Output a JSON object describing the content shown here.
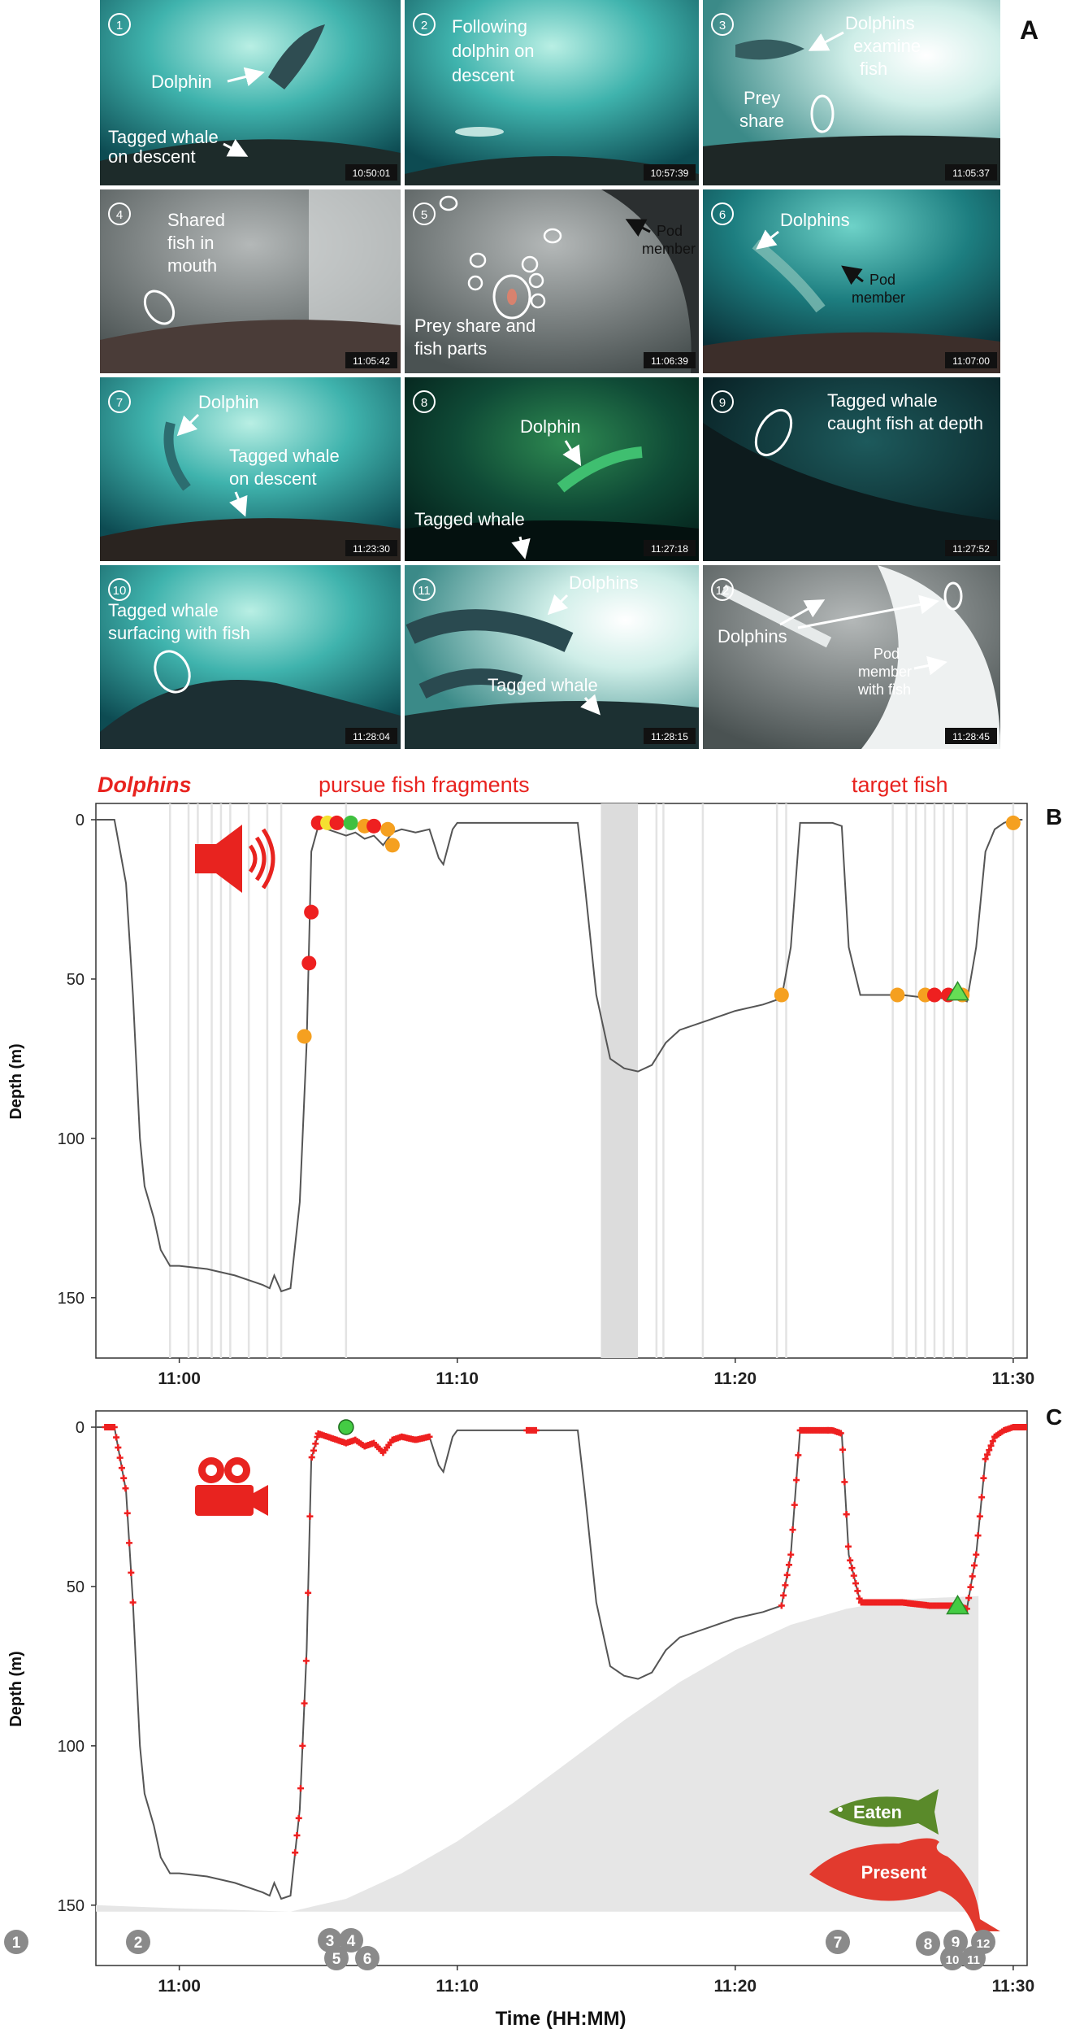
{
  "figure_title": "",
  "panel_letters": {
    "a": "A",
    "b": "B",
    "c": "C"
  },
  "photos": [
    {
      "number": "1",
      "timestamp": "10:50:01",
      "labels": [
        "Dolphin",
        "Tagged whale",
        "on descent"
      ]
    },
    {
      "number": "2",
      "timestamp": "10:57:39",
      "labels": [
        "Following",
        "dolphin on",
        "descent"
      ]
    },
    {
      "number": "3",
      "timestamp": "11:05:37",
      "labels": [
        "Dolphins",
        "examine",
        "fish",
        "Prey",
        "share"
      ]
    },
    {
      "number": "4",
      "timestamp": "11:05:42",
      "labels": [
        "Shared",
        "fish in",
        "mouth"
      ]
    },
    {
      "number": "5",
      "timestamp": "11:06:39",
      "labels": [
        "Pod",
        "member",
        "Prey share and",
        "fish parts"
      ]
    },
    {
      "number": "6",
      "timestamp": "11:07:00",
      "labels": [
        "Dolphins",
        "Pod",
        "member"
      ]
    },
    {
      "number": "7",
      "timestamp": "11:23:30",
      "labels": [
        "Dolphin",
        "Tagged whale",
        "on descent"
      ]
    },
    {
      "number": "8",
      "timestamp": "11:27:18",
      "labels": [
        "Dolphin",
        "Tagged whale"
      ]
    },
    {
      "number": "9",
      "timestamp": "11:27:52",
      "labels": [
        "Tagged whale",
        "caught fish at depth"
      ]
    },
    {
      "number": "10",
      "timestamp": "11:28:04",
      "labels": [
        "Tagged whale",
        "surfacing with fish"
      ]
    },
    {
      "number": "11",
      "timestamp": "11:28:15",
      "labels": [
        "Dolphins",
        "Tagged whale"
      ]
    },
    {
      "number": "12",
      "timestamp": "11:28:45",
      "labels": [
        "Dolphins",
        "Pod",
        "member",
        "with fish"
      ]
    }
  ],
  "chart_data": [
    {
      "type": "line",
      "panel": "B",
      "annotations": [
        "Dolphins",
        "pursue fish fragments",
        "target fish"
      ],
      "icon": "speaker-icon",
      "ylabel": "Depth (m)",
      "xlabel": "",
      "x_tick_labels": [
        "11:00",
        "11:10",
        "11:20",
        "11:30"
      ],
      "y_tick_labels": [
        "0",
        "50",
        "100",
        "150"
      ],
      "ylim": [
        0,
        160
      ],
      "xlim": [
        "10:57:00",
        "11:30:30"
      ],
      "depth_profile": {
        "x": [
          "10:57:00",
          "10:57:40",
          "10:58:05",
          "10:58:20",
          "10:58:35",
          "10:58:45",
          "10:59:05",
          "10:59:20",
          "10:59:40",
          "10:59:55",
          "11:00:00",
          "11:01:00",
          "11:02:00",
          "11:03:00",
          "11:03:15",
          "11:03:25",
          "11:03:40",
          "11:04:00",
          "11:04:20",
          "11:04:35",
          "11:04:45",
          "11:05:00",
          "11:05:20",
          "11:05:40",
          "11:06:00",
          "11:06:20",
          "11:06:40",
          "11:07:00",
          "11:07:20",
          "11:07:40",
          "11:08:00",
          "11:08:30",
          "11:09:00",
          "11:09:20",
          "11:09:30",
          "11:09:50",
          "11:10:00",
          "11:12:00",
          "11:14:00",
          "11:14:20",
          "11:14:35",
          "11:15:00",
          "11:15:30",
          "11:16:00",
          "11:16:30",
          "11:17:00",
          "11:17:30",
          "11:18:00",
          "11:19:00",
          "11:20:00",
          "11:21:00",
          "11:21:40",
          "11:22:00",
          "11:22:20",
          "11:23:00",
          "11:23:30",
          "11:23:50",
          "11:24:05",
          "11:24:30",
          "11:25:00",
          "11:26:00",
          "11:27:00",
          "11:28:00",
          "11:28:20",
          "11:28:40",
          "11:29:00",
          "11:29:20",
          "11:29:40",
          "11:30:00",
          "11:30:20"
        ],
        "y": [
          0,
          0,
          20,
          55,
          100,
          115,
          125,
          135,
          140,
          140,
          140,
          141,
          143,
          146,
          147,
          143,
          148,
          147,
          120,
          70,
          10,
          2,
          3,
          4,
          5,
          4,
          6,
          5,
          8,
          4,
          3,
          4,
          3,
          12,
          14,
          3,
          1,
          1,
          1,
          1,
          20,
          55,
          75,
          78,
          79,
          77,
          70,
          66,
          63,
          60,
          58,
          56,
          40,
          1,
          1,
          1,
          2,
          40,
          55,
          55,
          55,
          56,
          56,
          57,
          40,
          10,
          3,
          1,
          0,
          0
        ]
      },
      "events": [
        {
          "x": "11:04:30",
          "y": 68,
          "color": "#f5a020"
        },
        {
          "x": "11:04:40",
          "y": 45,
          "color": "#ee2020"
        },
        {
          "x": "11:04:45",
          "y": 29,
          "color": "#ee2020"
        },
        {
          "x": "11:05:00",
          "y": 1,
          "color": "#ee2020"
        },
        {
          "x": "11:05:20",
          "y": 1,
          "color": "#f5e030"
        },
        {
          "x": "11:05:40",
          "y": 1,
          "color": "#ee2020"
        },
        {
          "x": "11:06:10",
          "y": 1,
          "color": "#40c040"
        },
        {
          "x": "11:06:40",
          "y": 2,
          "color": "#f5a020"
        },
        {
          "x": "11:07:00",
          "y": 2,
          "color": "#ee2020"
        },
        {
          "x": "11:07:30",
          "y": 3,
          "color": "#f5a020"
        },
        {
          "x": "11:07:40",
          "y": 8,
          "color": "#f5a020"
        },
        {
          "x": "11:21:40",
          "y": 55,
          "color": "#f5a020"
        },
        {
          "x": "11:25:50",
          "y": 55,
          "color": "#f5a020"
        },
        {
          "x": "11:26:50",
          "y": 55,
          "color": "#f5a020"
        },
        {
          "x": "11:27:10",
          "y": 55,
          "color": "#ee2020"
        },
        {
          "x": "11:27:40",
          "y": 55,
          "color": "#ee2020"
        },
        {
          "x": "11:28:10",
          "y": 55,
          "color": "#f5a020"
        },
        {
          "x": "11:30:00",
          "y": 1,
          "color": "#f5a020"
        }
      ],
      "triangle_event": {
        "x": "11:28:00",
        "y": 54,
        "color": "#66dd55"
      },
      "shaded_spans": [
        [
          "11:15:10",
          "11:16:30"
        ]
      ],
      "vertical_lines": [
        "10:59:40",
        "11:00:20",
        "11:00:40",
        "11:01:10",
        "11:01:30",
        "11:01:50",
        "11:02:30",
        "11:03:10",
        "11:03:40",
        "11:06:00",
        "11:17:10",
        "11:17:25",
        "11:18:50",
        "11:21:30",
        "11:21:50",
        "11:25:40",
        "11:26:10",
        "11:26:30",
        "11:26:50",
        "11:27:10",
        "11:27:30",
        "11:27:50",
        "11:28:20",
        "11:30:00"
      ]
    },
    {
      "type": "line",
      "panel": "C",
      "icon": "video-camera-icon",
      "ylabel": "Depth (m)",
      "xlabel": "Time (HH:MM)",
      "x_tick_labels": [
        "11:00",
        "11:10",
        "11:20",
        "11:30"
      ],
      "y_tick_labels": [
        "0",
        "50",
        "100",
        "150"
      ],
      "ylim": [
        0,
        160
      ],
      "xlim": [
        "10:57:00",
        "11:30:30"
      ],
      "legend": {
        "fish_label": "Eaten",
        "dolphin_label": "Present",
        "fish_color": "#5a8a2a",
        "dolphin_color": "#e23a2e"
      },
      "video_segments": [
        [
          "10:57:20",
          "10:58:20"
        ],
        [
          "11:04:10",
          "11:05:00"
        ],
        [
          "11:05:00",
          "11:09:00"
        ],
        [
          "11:12:30",
          "11:12:50"
        ],
        [
          "11:21:40",
          "11:23:20"
        ],
        [
          "11:23:20",
          "11:24:00"
        ],
        [
          "11:24:00",
          "11:28:00"
        ],
        [
          "11:28:00",
          "11:30:30"
        ]
      ],
      "triangle_event": {
        "x": "11:28:00",
        "y": 56,
        "color": "#44cc44"
      },
      "green_dot": {
        "x": "11:06:00",
        "y": 0,
        "color": "#44cc44"
      },
      "presence_area": {
        "x": [
          "10:57:00",
          "11:00:00",
          "11:04:00",
          "11:06:00",
          "11:08:00",
          "11:10:00",
          "11:12:00",
          "11:14:00",
          "11:16:00",
          "11:18:00",
          "11:20:00",
          "11:22:00",
          "11:24:00",
          "11:26:00",
          "11:28:45"
        ],
        "y": [
          150,
          151,
          152,
          148,
          140,
          130,
          118,
          105,
          92,
          80,
          70,
          62,
          57,
          54,
          53
        ]
      },
      "photo_markers": [
        "1",
        "2",
        "3",
        "4",
        "5",
        "6",
        "7",
        "8",
        "9",
        "10",
        "11",
        "12"
      ]
    }
  ]
}
